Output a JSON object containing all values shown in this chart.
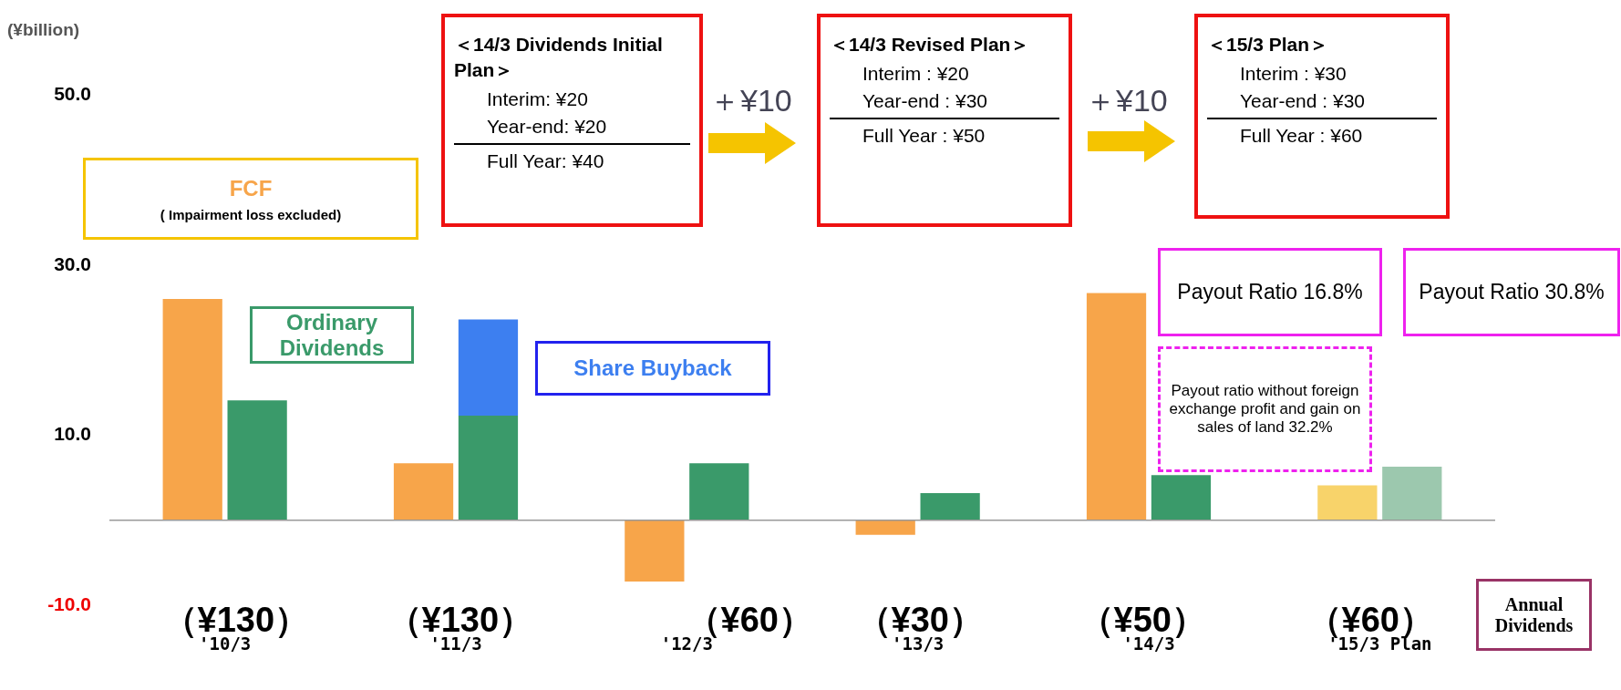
{
  "chart_data": {
    "type": "bar",
    "ylabel": "(¥billion)",
    "categories": [
      "'10/3",
      "'11/3",
      "'12/3",
      "'13/3",
      "'14/3",
      "'15/3 Plan"
    ],
    "series": [
      {
        "name": "FCF",
        "color": "#f7a54a",
        "colors": [
          "#f7a54a",
          "#f7a54a",
          "#f7a54a",
          "#f7a54a",
          "#f7a54a",
          "#f8d36a"
        ],
        "values": [
          26.0,
          6.7,
          -7.2,
          -1.7,
          26.7,
          4.1
        ]
      },
      {
        "name": "Ordinary Dividends",
        "color": "#3a9a6a",
        "colors": [
          "#3a9a6a",
          "#3a9a6a",
          "#3a9a6a",
          "#3a9a6a",
          "#3a9a6a",
          "#9cc8ae"
        ],
        "values": [
          14.1,
          12.3,
          6.7,
          3.2,
          5.3,
          6.3
        ]
      },
      {
        "name": "Share Buyback",
        "color": "#3d7ff0",
        "values": [
          null,
          11.3,
          null,
          null,
          null,
          null
        ],
        "base": [
          null,
          12.3,
          null,
          null,
          null,
          null
        ]
      }
    ],
    "ylim": [
      -10,
      50
    ],
    "yticks": [
      {
        "value": -10,
        "label": "-10.0"
      },
      {
        "value": 10,
        "label": "10.0"
      },
      {
        "value": 30,
        "label": "30.0"
      },
      {
        "value": 50,
        "label": "50.0"
      }
    ],
    "ref_lines": [
      {
        "axis": "y",
        "value": 0,
        "color": "#999999"
      }
    ],
    "grid": false,
    "legend": false,
    "annotations": [
      "( Impairment loss excluded)",
      "＜14/3 Dividends Initial Plan＞",
      "Interim:  ¥20",
      "Year-end:  ¥20",
      "Full Year:  ¥40",
      "＋¥10",
      "＜14/3 Revised Plan＞",
      "Interim :  ¥20",
      "Year-end :  ¥30",
      "Full Year :  ¥50",
      "＋¥10",
      "＜15/3  Plan＞",
      "Interim :  ¥30",
      "Year-end :  ¥30",
      "Full Year :  ¥60",
      "Payout Ratio 16.8%",
      "Payout Ratio 30.8%",
      "Payout ratio without foreign exchange profit and gain on sales of land 32.2%",
      "（¥130）",
      "（¥130）",
      "（¥60）",
      "（¥30）",
      "（¥50）",
      "（¥60）",
      "Annual Dividends"
    ]
  }
}
